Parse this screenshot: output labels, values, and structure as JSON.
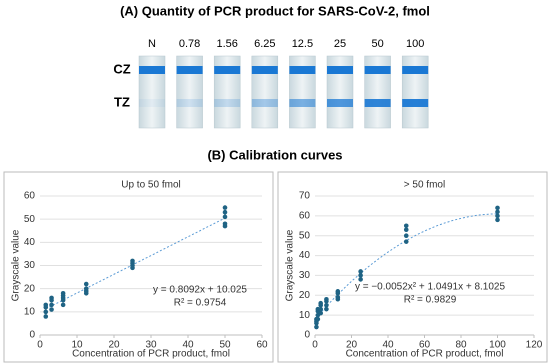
{
  "panel_a": {
    "title": "(A) Quantity of PCR product for SARS-CoV-2, fmol",
    "strip_labels": [
      "N",
      "0.78",
      "1.56",
      "6.25",
      "12.5",
      "25",
      "50",
      "100"
    ],
    "zone_labels": [
      "CZ",
      "TZ"
    ]
  },
  "panel_b_title": "(B) Calibration curves",
  "chart_data": [
    {
      "type": "scatter",
      "title": "Up to 50 fmol",
      "x_label": "Concentration of PCR product, fmol",
      "y_label": "Grayscale value",
      "x": [
        1.56,
        1.56,
        1.56,
        1.56,
        3.125,
        3.125,
        3.125,
        3.125,
        6.25,
        6.25,
        6.25,
        6.25,
        6.25,
        12.5,
        12.5,
        12.5,
        12.5,
        25,
        25,
        25,
        25,
        50,
        50,
        50,
        50,
        50
      ],
      "y": [
        8,
        10,
        12,
        13,
        11,
        13,
        15,
        16,
        13,
        15,
        16,
        17,
        18,
        18,
        19,
        20,
        22,
        29,
        30,
        31,
        32,
        47,
        48,
        51,
        53,
        55
      ],
      "color": "#1f6384",
      "xlim": [
        0,
        60
      ],
      "xticks": [
        0,
        10,
        20,
        30,
        40,
        50,
        60
      ],
      "ylim": [
        0,
        60
      ],
      "yticks": [
        0,
        10,
        20,
        30,
        40,
        50,
        60
      ],
      "grid": true,
      "trendline": {
        "type": "linear",
        "coefficients": [
          10.025,
          0.8092
        ],
        "equation": "y = 0.8092x + 10.025",
        "r_squared": "R² = 0.9754"
      }
    },
    {
      "type": "scatter",
      "title": "> 50 fmol",
      "x_label": "Concentration of PCR product, fmol",
      "y_label": "Grayscale value",
      "x": [
        0.78,
        0.78,
        0.78,
        0.78,
        1.56,
        1.56,
        1.56,
        1.56,
        3.125,
        3.125,
        3.125,
        3.125,
        6.25,
        6.25,
        6.25,
        6.25,
        12.5,
        12.5,
        12.5,
        12.5,
        25,
        25,
        25,
        50,
        50,
        50,
        50,
        100,
        100,
        100,
        100
      ],
      "y": [
        4,
        6,
        7,
        8,
        8,
        10,
        12,
        13,
        11,
        13,
        15,
        16,
        13,
        15,
        17,
        18,
        18,
        19,
        21,
        22,
        28,
        30,
        32,
        47,
        50,
        53,
        55,
        58,
        60,
        62,
        64
      ],
      "color": "#1f6384",
      "xlim": [
        0,
        120
      ],
      "xticks": [
        0,
        20,
        40,
        60,
        80,
        100,
        120
      ],
      "ylim": [
        0,
        70
      ],
      "yticks": [
        0,
        10,
        20,
        30,
        40,
        50,
        60,
        70
      ],
      "grid": true,
      "trendline": {
        "type": "polynomial",
        "coefficients": [
          8.1025,
          1.0491,
          -0.0052
        ],
        "equation": "y = −0.0052x² + 1.0491x + 8.1025",
        "r_squared": "R² = 0.9829"
      }
    }
  ]
}
